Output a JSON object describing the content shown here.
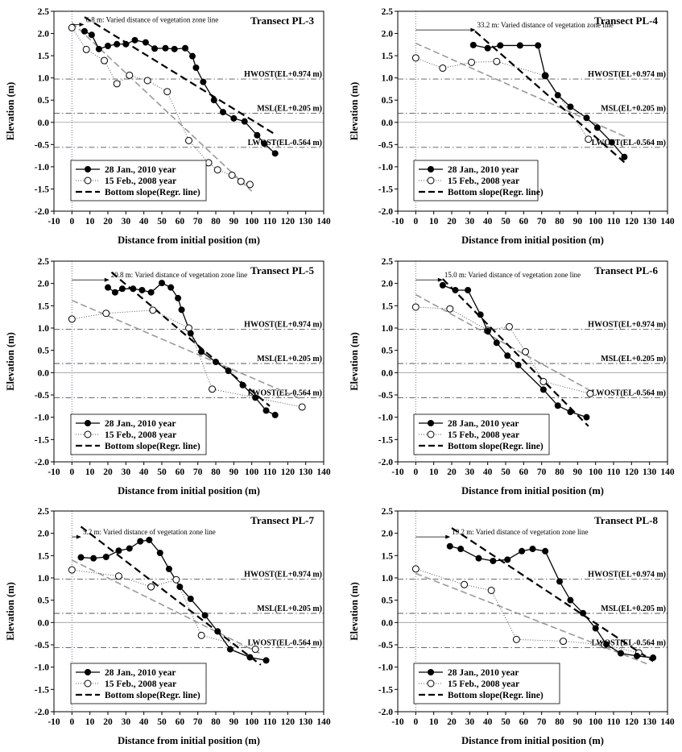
{
  "chart_data": [
    {
      "type": "line",
      "title": "Transect PL-3",
      "xlabel": "Distance from initial position (m)",
      "ylabel": "Elevation (m)",
      "xlim": [
        -10,
        140
      ],
      "ylim": [
        -2.0,
        2.5
      ],
      "xticks": [
        "-10",
        "0",
        "10",
        "20",
        "30",
        "40",
        "50",
        "60",
        "70",
        "80",
        "90",
        "100",
        "110",
        "120",
        "130",
        "140"
      ],
      "yticks": [
        "-2.0",
        "-1.5",
        "-1.0",
        "-0.5",
        "0.0",
        "0.5",
        "1.0",
        "1.5",
        "2.0",
        "2.5"
      ],
      "grid": false,
      "annotation": {
        "text": "6.8 m: Varied distance of vegetation zone line",
        "x_from": 0,
        "x_to": 6.8,
        "y": 2.2
      },
      "reference_lines": [
        {
          "label": "HWOST(EL+0.974 m)",
          "y": 0.974
        },
        {
          "label": "MSL(EL+0.205 m)",
          "y": 0.205
        },
        {
          "label": "LWOST(EL-0.564 m)",
          "y": -0.564
        }
      ],
      "series": [
        {
          "name": "28 Jan., 2010 year",
          "marker": "filled-circle",
          "x": [
            7,
            11,
            15,
            20,
            25,
            30,
            35,
            41,
            46,
            52,
            57,
            63,
            67,
            69,
            73,
            79,
            84,
            90,
            96,
            103,
            107,
            113
          ],
          "y": [
            2.05,
            1.97,
            1.65,
            1.72,
            1.76,
            1.76,
            1.85,
            1.8,
            1.66,
            1.67,
            1.65,
            1.67,
            1.49,
            1.23,
            0.91,
            0.5,
            0.23,
            0.09,
            0.02,
            -0.29,
            -0.48,
            -0.7
          ]
        },
        {
          "name": "15 Feb., 2008 year",
          "marker": "open-circle",
          "x": [
            0,
            8,
            18,
            25,
            32,
            42,
            53,
            65,
            76,
            81,
            89,
            94,
            99
          ],
          "y": [
            2.13,
            1.64,
            1.39,
            0.87,
            1.06,
            0.94,
            0.69,
            -0.41,
            -0.91,
            -1.07,
            -1.19,
            -1.33,
            -1.4
          ]
        },
        {
          "name": "Bottom slope(Regr. line)",
          "marker": "none",
          "x": [
            7,
            113
          ],
          "y": [
            2.37,
            -0.27
          ]
        },
        {
          "name": "2008 regression",
          "marker": "none",
          "x": [
            0,
            100
          ],
          "y": [
            2.25,
            -1.55
          ]
        }
      ],
      "legend": [
        "28 Jan., 2010 year",
        "15 Feb., 2008 year",
        "Bottom slope(Regr. line)"
      ]
    },
    {
      "type": "line",
      "title": "Transect PL-4",
      "xlabel": "Distance from initial position (m)",
      "ylabel": "Elevation (m)",
      "xlim": [
        -10,
        140
      ],
      "ylim": [
        -2.0,
        2.5
      ],
      "xticks": [
        "-10",
        "0",
        "10",
        "20",
        "30",
        "40",
        "50",
        "60",
        "70",
        "80",
        "90",
        "100",
        "110",
        "120",
        "130",
        "140"
      ],
      "yticks": [
        "-2.0",
        "-1.5",
        "-1.0",
        "-0.5",
        "0.0",
        "0.5",
        "1.0",
        "1.5",
        "2.0",
        "2.5"
      ],
      "grid": false,
      "annotation": {
        "text": "33.2 m: Varied distance of vegetation zone line",
        "x_from": 0,
        "x_to": 33.2,
        "y": 2.08
      },
      "reference_lines": [
        {
          "label": "HWOST(EL+0.974 m)",
          "y": 0.974
        },
        {
          "label": "MSL(EL+0.205 m)",
          "y": 0.205
        },
        {
          "label": "LWOST(EL-0.564 m)",
          "y": -0.564
        }
      ],
      "series": [
        {
          "name": "28 Jan., 2010 year",
          "marker": "filled-circle",
          "x": [
            32,
            40,
            47,
            58,
            68,
            72,
            79,
            86,
            95,
            101,
            109,
            116
          ],
          "y": [
            1.74,
            1.67,
            1.73,
            1.73,
            1.73,
            1.05,
            0.61,
            0.35,
            0.1,
            -0.12,
            -0.45,
            -0.78
          ]
        },
        {
          "name": "15 Feb., 2008 year",
          "marker": "open-circle",
          "x": [
            0,
            15,
            31,
            45,
            72,
            96
          ],
          "y": [
            1.45,
            1.22,
            1.35,
            1.37,
            1.05,
            -0.38
          ]
        },
        {
          "name": "Bottom slope(Regr. line)",
          "marker": "none",
          "x": [
            33,
            116
          ],
          "y": [
            2.05,
            -0.9
          ]
        },
        {
          "name": "2008 regression",
          "marker": "none",
          "x": [
            0,
            118
          ],
          "y": [
            1.78,
            -0.35
          ]
        }
      ],
      "legend": [
        "28 Jan., 2010 year",
        "15 Feb., 2008 year",
        "Bottom slope(Regr. line)"
      ]
    },
    {
      "type": "line",
      "title": "Transect PL-5",
      "xlabel": "Distance from initial position (m)",
      "ylabel": "Elevation (m)",
      "xlim": [
        -10,
        140
      ],
      "ylim": [
        -2.0,
        2.5
      ],
      "xticks": [
        "-10",
        "0",
        "10",
        "20",
        "30",
        "40",
        "50",
        "60",
        "70",
        "80",
        "90",
        "100",
        "110",
        "120",
        "130",
        "140"
      ],
      "yticks": [
        "-2.0",
        "-1.5",
        "-1.0",
        "-0.5",
        "0.0",
        "0.5",
        "1.0",
        "1.5",
        "2.0",
        "2.5"
      ],
      "grid": false,
      "annotation": {
        "text": "20.8 m: Varied distance of vegetation zone line",
        "x_from": 0,
        "x_to": 20.8,
        "y": 2.08
      },
      "reference_lines": [
        {
          "label": "HWOST(EL+0.974 m)",
          "y": 0.974
        },
        {
          "label": "MSL(EL+0.205 m)",
          "y": 0.205
        },
        {
          "label": "LWOST(EL-0.564 m)",
          "y": -0.564
        }
      ],
      "series": [
        {
          "name": "28 Jan., 2010 year",
          "marker": "filled-circle",
          "x": [
            20,
            24,
            28,
            34,
            39,
            44,
            50,
            55,
            59,
            61,
            66,
            72,
            80,
            87,
            95,
            102,
            108,
            113
          ],
          "y": [
            1.91,
            1.8,
            1.88,
            1.88,
            1.85,
            1.8,
            2.01,
            1.91,
            1.67,
            1.41,
            0.88,
            0.47,
            0.24,
            0.04,
            -0.28,
            -0.56,
            -0.85,
            -0.95
          ]
        },
        {
          "name": "15 Feb., 2008 year",
          "marker": "open-circle",
          "x": [
            0,
            19,
            45,
            65,
            78,
            128
          ],
          "y": [
            1.2,
            1.33,
            1.4,
            1.0,
            -0.37,
            -0.77
          ]
        },
        {
          "name": "Bottom slope(Regr. line)",
          "marker": "none",
          "x": [
            22,
            110
          ],
          "y": [
            2.25,
            -0.75
          ]
        },
        {
          "name": "2008 regression",
          "marker": "none",
          "x": [
            0,
            128
          ],
          "y": [
            1.62,
            -0.6
          ]
        }
      ],
      "legend": [
        "28 Jan., 2010 year",
        "15 Feb., 2008 year",
        "Bottom slope(Regr. line)"
      ]
    },
    {
      "type": "line",
      "title": "Transect PL-6",
      "xlabel": "Distance from initial position (m)",
      "ylabel": "Elevation (m)",
      "xlim": [
        -10,
        140
      ],
      "ylim": [
        -2.0,
        2.5
      ],
      "xticks": [
        "-10",
        "0",
        "10",
        "20",
        "30",
        "40",
        "50",
        "60",
        "70",
        "80",
        "90",
        "100",
        "110",
        "120",
        "130",
        "140"
      ],
      "yticks": [
        "-2.0",
        "-1.5",
        "-1.0",
        "-0.5",
        "0.0",
        "0.5",
        "1.0",
        "1.5",
        "2.0",
        "2.5"
      ],
      "grid": false,
      "annotation": {
        "text": "15.0 m: Varied distance of vegetation zone line",
        "x_from": 0,
        "x_to": 15.0,
        "y": 2.08
      },
      "reference_lines": [
        {
          "label": "HWOST(EL+0.974 m)",
          "y": 0.974
        },
        {
          "label": "MSL(EL+0.205 m)",
          "y": 0.205
        },
        {
          "label": "LWOST(EL-0.564 m)",
          "y": -0.564
        }
      ],
      "series": [
        {
          "name": "28 Jan., 2010 year",
          "marker": "filled-circle",
          "x": [
            15,
            22,
            29,
            36,
            40,
            45,
            51,
            57,
            71,
            79,
            86,
            95
          ],
          "y": [
            1.96,
            1.85,
            1.85,
            1.3,
            0.93,
            0.67,
            0.38,
            0.17,
            -0.38,
            -0.74,
            -0.88,
            -1.0
          ]
        },
        {
          "name": "15 Feb., 2008 year",
          "marker": "open-circle",
          "x": [
            0,
            19,
            40,
            52,
            61,
            71,
            97
          ],
          "y": [
            1.47,
            1.43,
            0.95,
            1.03,
            0.47,
            -0.2,
            -0.47
          ]
        },
        {
          "name": "Bottom slope(Regr. line)",
          "marker": "none",
          "x": [
            15,
            96
          ],
          "y": [
            2.1,
            -1.2
          ]
        },
        {
          "name": "2008 regression",
          "marker": "none",
          "x": [
            0,
            97
          ],
          "y": [
            1.75,
            -0.4
          ]
        }
      ],
      "legend": [
        "28 Jan., 2010 year",
        "15 Feb., 2008 year",
        "Bottom slope(Regr. line)"
      ]
    },
    {
      "type": "line",
      "title": "Transect PL-7",
      "xlabel": "Distance from initial position (m)",
      "ylabel": "Elevation (m)",
      "xlim": [
        -10,
        140
      ],
      "ylim": [
        -2.0,
        2.5
      ],
      "xticks": [
        "-10",
        "0",
        "10",
        "20",
        "30",
        "40",
        "50",
        "60",
        "70",
        "80",
        "90",
        "100",
        "110",
        "120",
        "130",
        "140"
      ],
      "yticks": [
        "-2.0",
        "-1.5",
        "-1.0",
        "-0.5",
        "0.0",
        "0.5",
        "1.0",
        "1.5",
        "2.0",
        "2.5"
      ],
      "grid": false,
      "annotation": {
        "text": "5.2 m: Varied distance of vegetation zone line",
        "x_from": 0,
        "x_to": 5.2,
        "y": 1.92
      },
      "reference_lines": [
        {
          "label": "HWOST(EL+0.974 m)",
          "y": 0.974
        },
        {
          "label": "MSL(EL+0.205 m)",
          "y": 0.205
        },
        {
          "label": "LWOST(EL-0.564 m)",
          "y": -0.564
        }
      ],
      "series": [
        {
          "name": "28 Jan., 2010 year",
          "marker": "filled-circle",
          "x": [
            5,
            12,
            19,
            26,
            32,
            38,
            43,
            49,
            54,
            60,
            66,
            74,
            81,
            88,
            99,
            108
          ],
          "y": [
            1.46,
            1.44,
            1.47,
            1.61,
            1.66,
            1.82,
            1.85,
            1.56,
            1.2,
            0.8,
            0.53,
            0.16,
            -0.2,
            -0.6,
            -0.78,
            -0.85
          ]
        },
        {
          "name": "15 Feb., 2008 year",
          "marker": "open-circle",
          "x": [
            0,
            26,
            44,
            58,
            72,
            102
          ],
          "y": [
            1.18,
            1.04,
            0.8,
            0.96,
            -0.29,
            -0.6
          ]
        },
        {
          "name": "Bottom slope(Regr. line)",
          "marker": "none",
          "x": [
            5,
            105
          ],
          "y": [
            2.15,
            -0.95
          ]
        },
        {
          "name": "2008 regression",
          "marker": "none",
          "x": [
            0,
            105
          ],
          "y": [
            1.4,
            -0.7
          ]
        }
      ],
      "legend": [
        "28 Jan., 2010 year",
        "15 Feb., 2008 year",
        "Bottom slope(Regr. line)"
      ]
    },
    {
      "type": "line",
      "title": "Transect PL-8",
      "xlabel": "Distance from initial position (m)",
      "ylabel": "Elevation (m)",
      "xlim": [
        -10,
        140
      ],
      "ylim": [
        -2.0,
        2.5
      ],
      "xticks": [
        "-10",
        "0",
        "10",
        "20",
        "30",
        "40",
        "50",
        "60",
        "70",
        "80",
        "90",
        "100",
        "110",
        "120",
        "130",
        "140"
      ],
      "yticks": [
        "-2.0",
        "-1.5",
        "-1.0",
        "-0.5",
        "0.0",
        "0.5",
        "1.0",
        "1.5",
        "2.0",
        "2.5"
      ],
      "grid": false,
      "annotation": {
        "text": "19.2 m: Varied distance of vegetation zone line",
        "x_from": 0,
        "x_to": 19.2,
        "y": 1.92
      },
      "reference_lines": [
        {
          "label": "HWOST(EL+0.974 m)",
          "y": 0.974
        },
        {
          "label": "MSL(EL+0.205 m)",
          "y": 0.205
        },
        {
          "label": "LWOST(EL-0.564 m)",
          "y": -0.564
        }
      ],
      "series": [
        {
          "name": "28 Jan., 2010 year",
          "marker": "filled-circle",
          "x": [
            19,
            25,
            35,
            43,
            51,
            59,
            65,
            72,
            80,
            86,
            93,
            100,
            106,
            114,
            123,
            132
          ],
          "y": [
            1.71,
            1.65,
            1.44,
            1.38,
            1.41,
            1.6,
            1.65,
            1.6,
            0.92,
            0.5,
            0.21,
            -0.13,
            -0.49,
            -0.69,
            -0.75,
            -0.79
          ]
        },
        {
          "name": "15 Feb., 2008 year",
          "marker": "open-circle",
          "x": [
            0,
            27,
            42,
            56,
            82,
            105,
            124
          ],
          "y": [
            1.2,
            0.85,
            0.72,
            -0.38,
            -0.42,
            -0.5,
            -0.68
          ]
        },
        {
          "name": "Bottom slope(Regr. line)",
          "marker": "none",
          "x": [
            20,
            132
          ],
          "y": [
            2.12,
            -0.87
          ]
        },
        {
          "name": "2008 regression",
          "marker": "none",
          "x": [
            0,
            130
          ],
          "y": [
            1.1,
            -0.95
          ]
        }
      ],
      "legend": [
        "28 Jan., 2010 year",
        "15 Feb., 2008 year",
        "Bottom slope(Regr. line)"
      ]
    }
  ]
}
